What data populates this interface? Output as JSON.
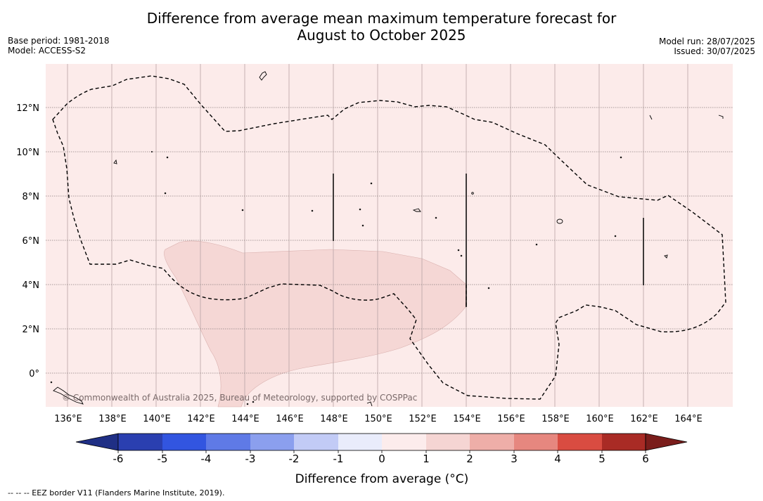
{
  "title_line1": "Difference from average mean maximum temperature forecast for",
  "title_line2": "August to October 2025",
  "base_period": "Base period: 1981-2018",
  "model": "Model: ACCESS-S2",
  "model_run": "Model run: 28/07/2025",
  "issued": "Issued: 30/07/2025",
  "copyright": "© Commonwealth of Australia 2025, Bureau of Meteorology, supported by COSPPac",
  "lat_labels": [
    "12°N",
    "10°N",
    "8°N",
    "6°N",
    "4°N",
    "2°N",
    "0°"
  ],
  "lon_labels": [
    "136°E",
    "138°E",
    "140°E",
    "142°E",
    "144°E",
    "146°E",
    "148°E",
    "150°E",
    "152°E",
    "154°E",
    "156°E",
    "158°E",
    "160°E",
    "162°E",
    "164°E"
  ],
  "colorbar": {
    "tick_labels": [
      "-6",
      "-5",
      "-4",
      "-3",
      "-2",
      "-1",
      "0",
      "1",
      "2",
      "3",
      "4",
      "5",
      "6"
    ],
    "colors": [
      "#1f2f85",
      "#2a3fb0",
      "#3255e0",
      "#5f7ae6",
      "#8b9fee",
      "#c2cbf6",
      "#e9ecfb",
      "#fcecec",
      "#f5d5d3",
      "#eeaea8",
      "#e6877f",
      "#d94c41",
      "#a92b25",
      "#7a1d1b"
    ],
    "label": "Difference from average (°C)"
  },
  "map": {
    "background_category": "0 to 1",
    "background_color": "#fcebea",
    "anomaly_region_category": "1 to 2",
    "anomaly_region_color": "#f5d7d5"
  },
  "footnote": "--  --  -- EEZ border V11 (Flanders Marine Institute, 2019)."
}
